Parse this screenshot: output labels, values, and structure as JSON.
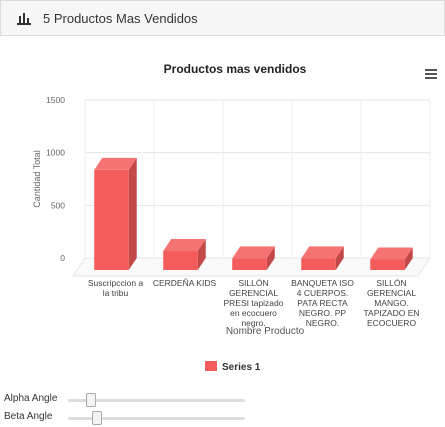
{
  "panel_title": "5 Productos Mas Vendidos",
  "chart_data": {
    "type": "bar3d",
    "title": "Productos mas vendidos",
    "categories": [
      "Suscripccion a la tribu",
      "CERDEÑA KIDS",
      "SILLÓN GERENCIAL PRESI tapizado en ecocuero negro.",
      "BANQUETA ISO 4 CUERPOS. PATA RECTA NEGRO. PP NEGRO.",
      "SILLÓN GERENCIAL MANGO. TAPIZADO EN ECOCUERO"
    ],
    "series": [
      {
        "name": "Series 1",
        "color": "#f45b5b",
        "values": [
          950,
          180,
          110,
          110,
          100
        ]
      }
    ],
    "ylim": [
      0,
      1500
    ],
    "yticks": [
      0,
      500,
      1000,
      1500
    ],
    "grid": true,
    "y_label": "Cantidad Total",
    "x_label": "Nombre Producto",
    "legend": "bottom"
  },
  "controls": {
    "alpha_label": "Alpha Angle",
    "beta_label": "Beta Angle"
  }
}
